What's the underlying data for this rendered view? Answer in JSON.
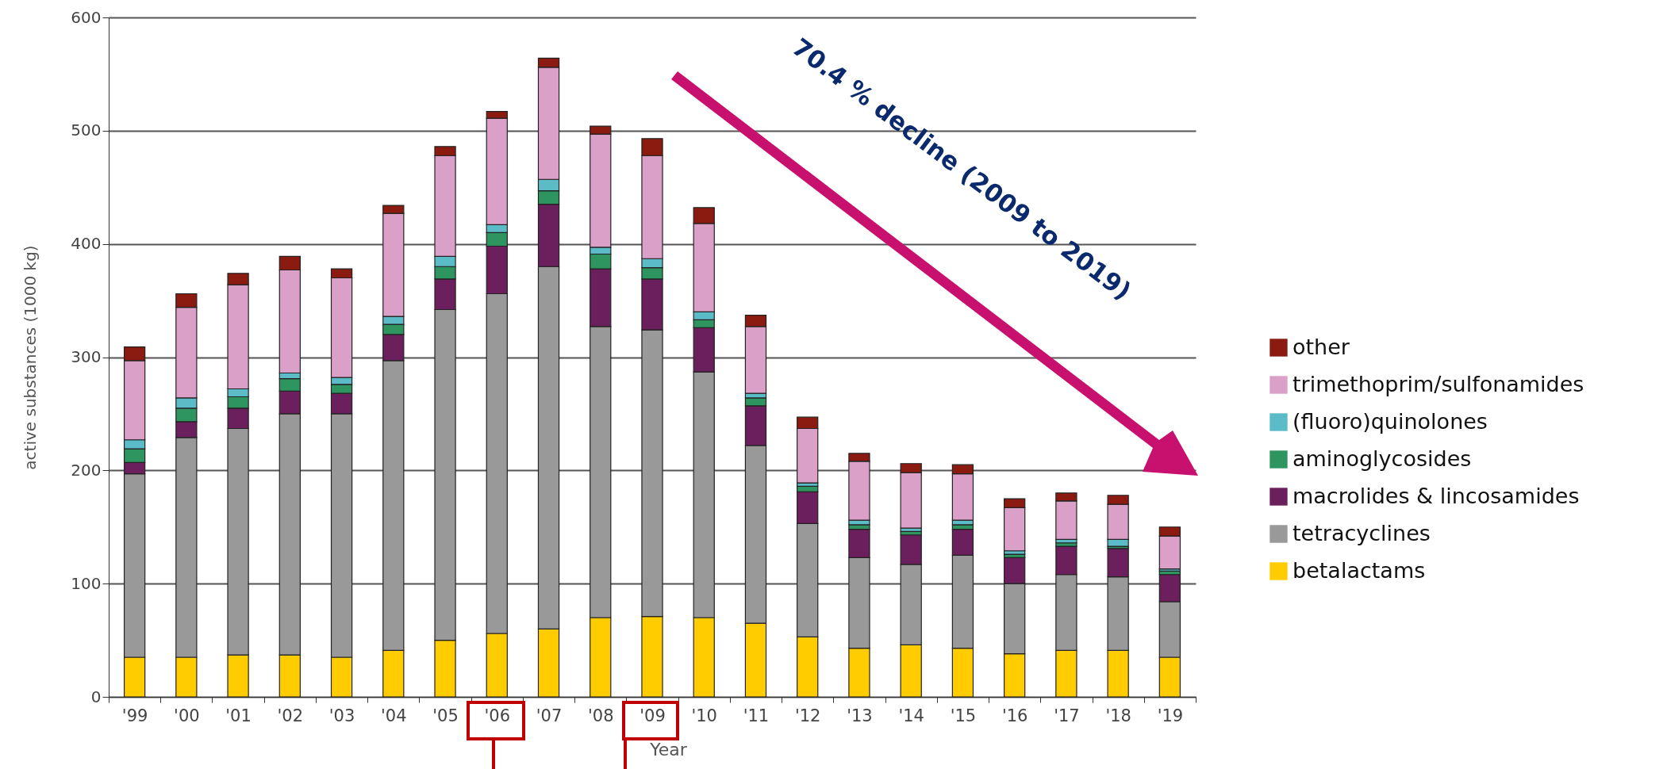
{
  "chart_data": {
    "type": "bar",
    "stacked": true,
    "xlabel": "Year",
    "ylabel": "active substances (1000 kg)",
    "categories": [
      "'99",
      "'00",
      "'01",
      "'02",
      "'03",
      "'04",
      "'05",
      "'06",
      "'07",
      "'08",
      "'09",
      "'10",
      "'11",
      "'12",
      "'13",
      "'14",
      "'15",
      "'16",
      "'17",
      "'18",
      "'19"
    ],
    "series": [
      {
        "name": "betalactams",
        "color": "#ffcc00",
        "values": [
          35,
          35,
          37,
          37,
          35,
          41,
          50,
          56,
          60,
          70,
          71,
          70,
          65,
          53,
          43,
          46,
          43,
          38,
          41,
          41,
          35
        ]
      },
      {
        "name": "tetracyclines",
        "color": "#999999",
        "values": [
          162,
          194,
          200,
          213,
          215,
          256,
          292,
          300,
          320,
          257,
          253,
          217,
          157,
          100,
          80,
          71,
          82,
          62,
          67,
          65,
          49
        ]
      },
      {
        "name": "macrolides & lincosamides",
        "color": "#6b1f5c",
        "values": [
          10,
          14,
          18,
          20,
          18,
          23,
          27,
          42,
          55,
          51,
          45,
          39,
          35,
          28,
          25,
          26,
          23,
          23,
          25,
          25,
          24
        ]
      },
      {
        "name": "aminoglycosides",
        "color": "#2e9460",
        "values": [
          12,
          12,
          10,
          11,
          8,
          9,
          11,
          12,
          12,
          13,
          10,
          7,
          7,
          5,
          4,
          3,
          4,
          3,
          3,
          2,
          3
        ]
      },
      {
        "name": "(fluoro)quinolones",
        "color": "#5bbcc8",
        "values": [
          8,
          9,
          7,
          5,
          6,
          7,
          9,
          7,
          10,
          6,
          8,
          7,
          4,
          3,
          4,
          3,
          4,
          3,
          3,
          6,
          2
        ]
      },
      {
        "name": "trimethoprim/sulfonamides",
        "color": "#dba0c8",
        "values": [
          70,
          80,
          92,
          91,
          88,
          91,
          89,
          94,
          99,
          100,
          91,
          78,
          59,
          48,
          52,
          49,
          41,
          38,
          34,
          31,
          29
        ]
      },
      {
        "name": "other",
        "color": "#8b1a10",
        "values": [
          12,
          12,
          10,
          12,
          8,
          7,
          8,
          6,
          8,
          7,
          15,
          14,
          10,
          10,
          7,
          8,
          8,
          8,
          7,
          8,
          8
        ]
      }
    ],
    "ylim": [
      0,
      600
    ],
    "yticks": [
      0,
      100,
      200,
      300,
      400,
      500,
      600
    ],
    "grid": "y",
    "legend": "right",
    "annotations": [
      "70.4 % decline (2009 to 2019)"
    ]
  }
}
